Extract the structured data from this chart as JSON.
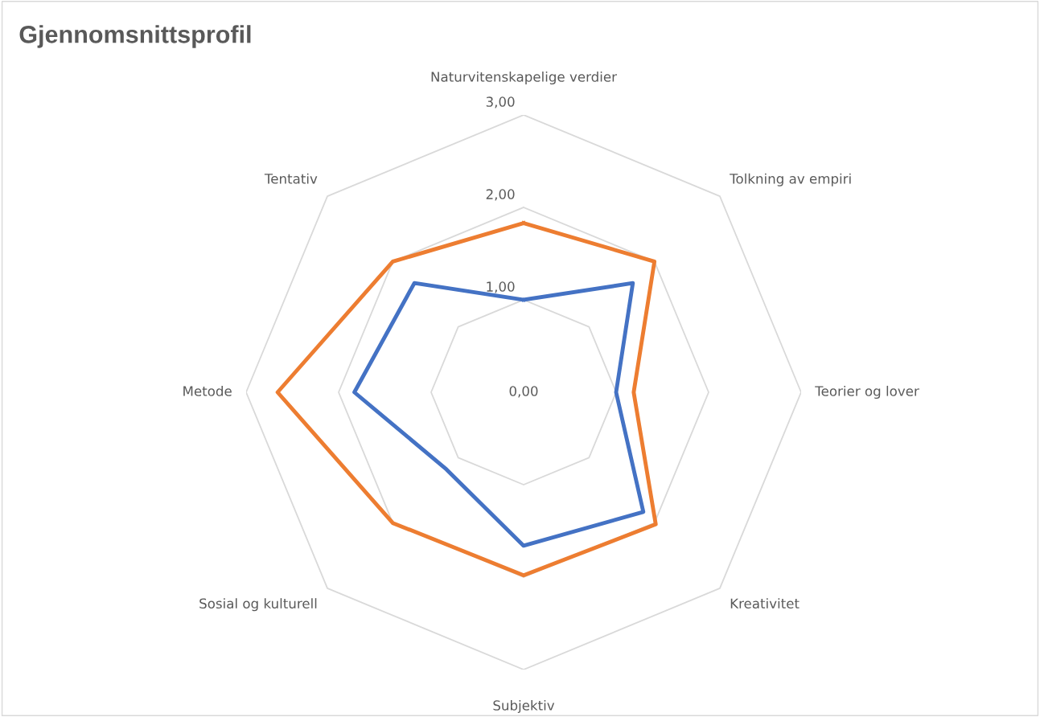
{
  "chart_data": {
    "type": "radar",
    "title": "Gjennomsnittsprofil",
    "categories": [
      "Naturvitenskapelige verdier",
      "Tolkning av empiri",
      "Teorier og lover",
      "Kreativitet",
      "Subjektiv",
      "Sosial og kulturell",
      "Metode",
      "Tentativ"
    ],
    "series": [
      {
        "color": "#4472c4",
        "values": [
          1.0,
          1.67,
          1.0,
          1.83,
          1.66,
          1.18,
          1.83,
          1.67
        ]
      },
      {
        "color": "#ed7d31",
        "values": [
          1.83,
          2.0,
          1.19,
          2.02,
          1.98,
          2.0,
          2.66,
          2.0
        ]
      }
    ],
    "ylim": [
      0,
      3
    ],
    "yticks": [
      {
        "value": 0,
        "label": "0,00"
      },
      {
        "value": 1,
        "label": "1,00"
      },
      {
        "value": 2,
        "label": "2,00"
      },
      {
        "value": 3,
        "label": "3,00"
      }
    ],
    "grid": true
  }
}
